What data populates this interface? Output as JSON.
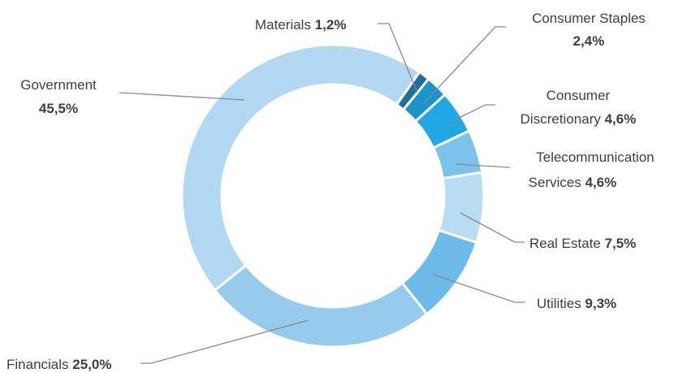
{
  "chart_data": {
    "type": "pie",
    "variant": "donut",
    "title": "",
    "decimal_separator": ",",
    "slices": [
      {
        "name": "Materials",
        "value": 1.2,
        "label": "1,2%",
        "color": "#1f6f9a"
      },
      {
        "name": "Consumer Staples",
        "value": 2.4,
        "label": "2,4%",
        "color": "#1b94cc"
      },
      {
        "name": "Consumer Discretionary",
        "value": 4.6,
        "label": "4,6%",
        "color": "#21a7e2"
      },
      {
        "name": "Telecommunication Services",
        "value": 4.6,
        "label": "4,6%",
        "color": "#7cc3ec"
      },
      {
        "name": "Real Estate",
        "value": 7.5,
        "label": "7,5%",
        "color": "#b8dcf2"
      },
      {
        "name": "Utilities",
        "value": 9.3,
        "label": "9,3%",
        "color": "#6dbbe8"
      },
      {
        "name": "Financials",
        "value": 25.0,
        "label": "25,0%",
        "color": "#97cbee"
      },
      {
        "name": "Government",
        "value": 45.5,
        "label": "45,5%",
        "color": "#b3d8f1"
      }
    ]
  },
  "labels": {
    "materials": {
      "name": "Materials",
      "value": "1,2%"
    },
    "consumer_staples": {
      "name": "Consumer Staples",
      "value": "2,4%"
    },
    "consumer_discretionary": {
      "name_line1": "Consumer",
      "name_line2": "Discretionary",
      "value": "4,6%"
    },
    "telecommunication_services": {
      "name_line1": "Telecommunication",
      "name_line2": "Services",
      "value": "4,6%"
    },
    "real_estate": {
      "name": "Real Estate",
      "value": "7,5%"
    },
    "utilities": {
      "name": "Utilities",
      "value": "9,3%"
    },
    "financials": {
      "name": "Financials",
      "value": "25,0%"
    },
    "government": {
      "name": "Government",
      "value": "45,5%"
    }
  }
}
